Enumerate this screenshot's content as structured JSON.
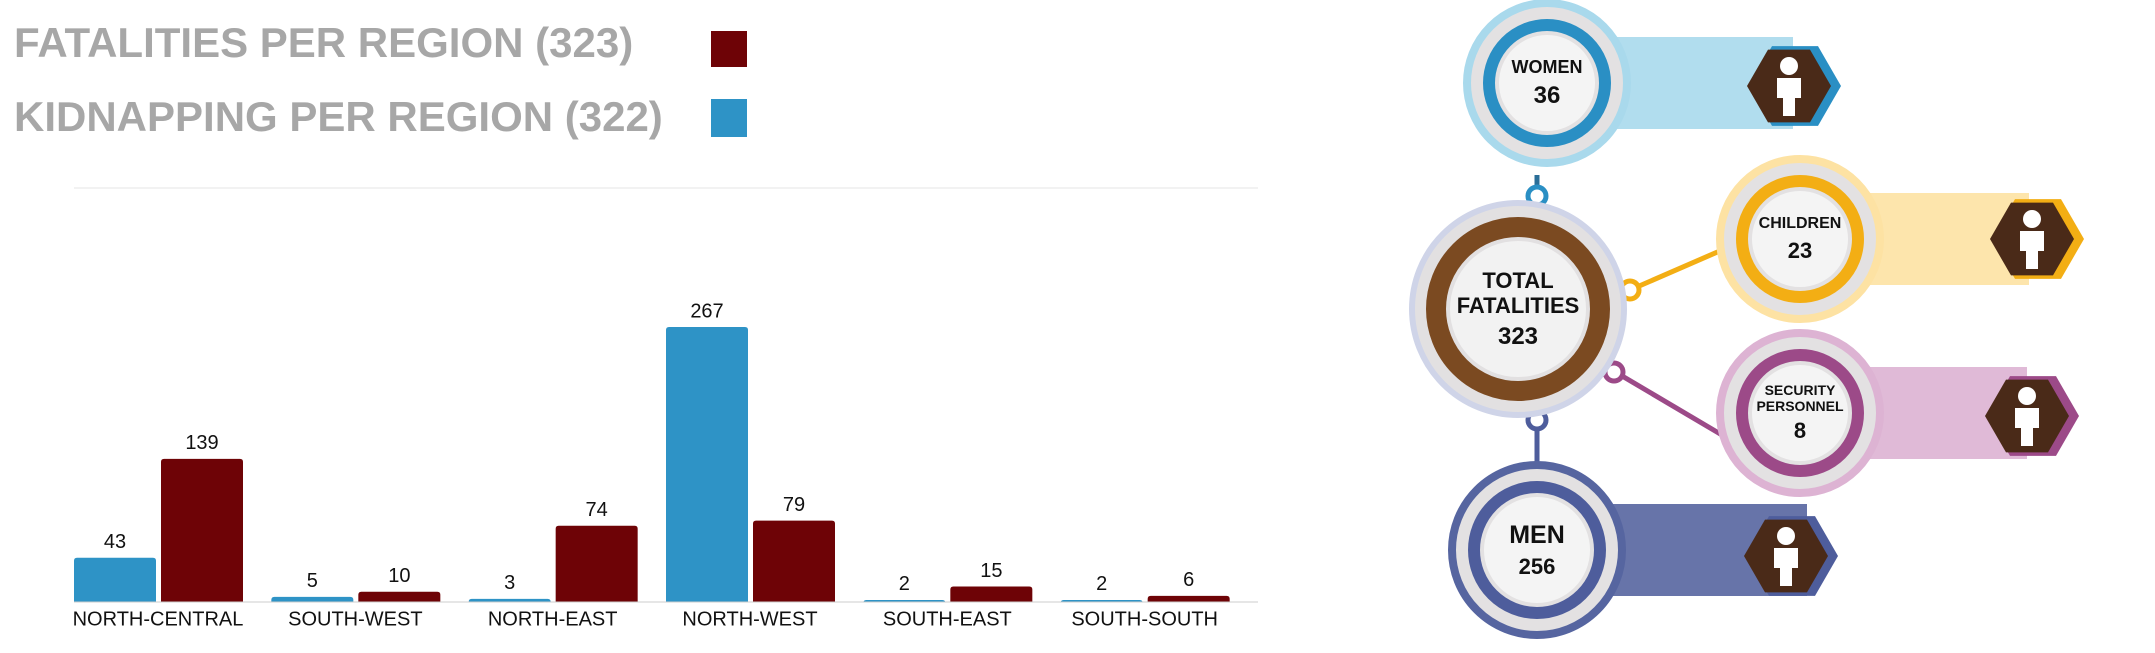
{
  "chart_data": {
    "type": "bar",
    "categories": [
      "NORTH-CENTRAL",
      "SOUTH-WEST",
      "NORTH-EAST",
      "NORTH-WEST",
      "SOUTH-EAST",
      "SOUTH-SOUTH"
    ],
    "series": [
      {
        "name": "KIDNAPPING PER REGION (322)",
        "color": "#2e93c6",
        "values": [
          43,
          5,
          3,
          267,
          2,
          2
        ]
      },
      {
        "name": "FATALITIES PER REGION (323)",
        "color": "#6e0306",
        "values": [
          139,
          10,
          74,
          79,
          15,
          6
        ]
      }
    ]
  },
  "infographic": {
    "total": {
      "label": "TOTAL FATALITIES",
      "value": 323
    },
    "groups": [
      {
        "label": "WOMEN",
        "value": 36
      },
      {
        "label": "CHILDREN",
        "value": 23
      },
      {
        "label": "SECURITY PERSONNEL",
        "value": 8
      },
      {
        "label": "MEN",
        "value": 256
      }
    ]
  }
}
